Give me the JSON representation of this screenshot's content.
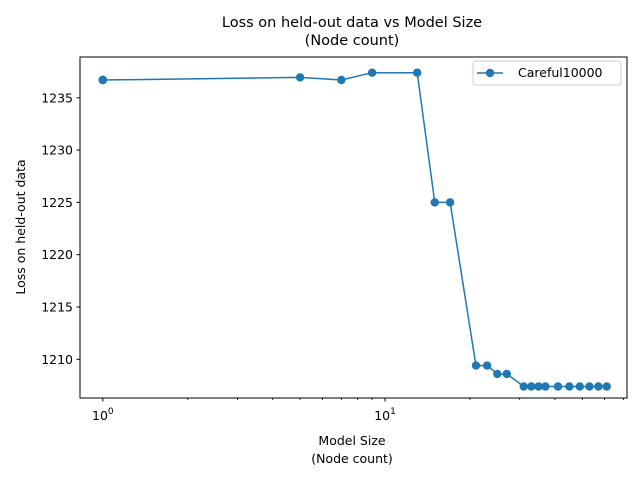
{
  "chart_data": {
    "type": "line",
    "title": "Loss on held-out data vs Model Size\n(Node count)",
    "xlabel": "Model Size\n(Node count)",
    "ylabel": "Loss on held-out data",
    "xscale": "log",
    "xlim": [
      0.83,
      72
    ],
    "ylim": [
      1206.3,
      1238.9
    ],
    "x_ticks": [
      {
        "value": 1,
        "label": "10^0"
      },
      {
        "value": 10,
        "label": "10^1"
      }
    ],
    "y_ticks": [
      1210,
      1215,
      1220,
      1225,
      1230,
      1235
    ],
    "grid": false,
    "legend_loc": "upper right",
    "series": [
      {
        "name": "Careful10000",
        "color": "#1f77b4",
        "marker": "circle",
        "x": [
          1,
          1,
          1,
          5,
          7,
          9,
          13,
          15,
          17,
          21,
          23,
          25,
          27,
          31,
          33,
          35,
          37,
          41,
          45,
          49,
          53,
          57,
          61
        ],
        "y": [
          1236.7,
          1236.7,
          1236.7,
          1236.95,
          1236.7,
          1237.4,
          1237.4,
          1225.0,
          1225.0,
          1209.4,
          1209.4,
          1208.6,
          1208.6,
          1207.4,
          1207.4,
          1207.4,
          1207.4,
          1207.4,
          1207.4,
          1207.4,
          1207.4,
          1207.4,
          1207.4
        ]
      }
    ]
  }
}
